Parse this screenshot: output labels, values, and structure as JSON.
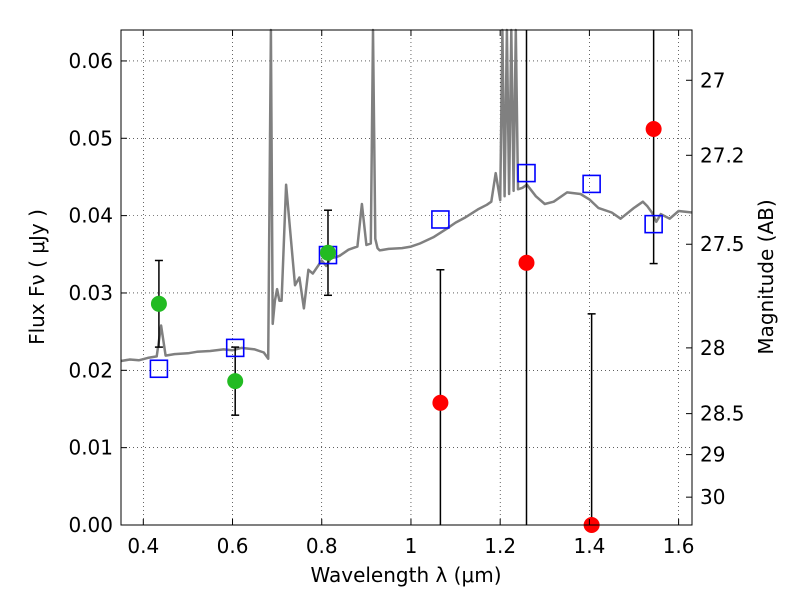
{
  "chart_data": {
    "type": "scatter",
    "xlabel": "Wavelength  λ (μm)",
    "ylabel": "Flux  Fν  ( μJy )",
    "y2label": "Magnitude (AB)",
    "xlim": [
      0.35,
      1.63
    ],
    "ylim": [
      0.0,
      0.064
    ],
    "grid": true,
    "x_ticks": [
      0.4,
      0.6,
      0.8,
      1.0,
      1.2,
      1.4,
      1.6
    ],
    "x_tick_labels": [
      "0.4",
      "0.6",
      "0.8",
      "1",
      "1.2",
      "1.4",
      "1.6"
    ],
    "y_ticks": [
      0.0,
      0.01,
      0.02,
      0.03,
      0.04,
      0.05,
      0.06
    ],
    "y_tick_labels": [
      "0.00",
      "0.01",
      "0.02",
      "0.03",
      "0.04",
      "0.05",
      "0.06"
    ],
    "y2_ticks": [
      {
        "label": "27",
        "flux": 0.0575
      },
      {
        "label": "27.2",
        "flux": 0.0478
      },
      {
        "label": "27.5",
        "flux": 0.0363
      },
      {
        "label": "28",
        "flux": 0.0229
      },
      {
        "label": "28.5",
        "flux": 0.0144
      },
      {
        "label": "29",
        "flux": 0.0091
      },
      {
        "label": "30",
        "flux": 0.0036
      }
    ],
    "series": [
      {
        "kind": "line",
        "color": "#808080",
        "x": [
          0.35,
          0.37,
          0.39,
          0.41,
          0.43,
          0.44,
          0.45,
          0.47,
          0.5,
          0.52,
          0.55,
          0.58,
          0.6,
          0.62,
          0.65,
          0.67,
          0.68,
          0.686,
          0.69,
          0.695,
          0.7,
          0.705,
          0.71,
          0.72,
          0.74,
          0.75,
          0.76,
          0.77,
          0.78,
          0.8,
          0.81,
          0.82,
          0.83,
          0.84,
          0.85,
          0.86,
          0.87,
          0.88,
          0.89,
          0.9,
          0.91,
          0.915,
          0.92,
          0.925,
          0.93,
          0.95,
          0.98,
          1.0,
          1.02,
          1.05,
          1.08,
          1.1,
          1.12,
          1.15,
          1.17,
          1.18,
          1.19,
          1.2,
          1.205,
          1.21,
          1.215,
          1.22,
          1.225,
          1.23,
          1.235,
          1.24,
          1.25,
          1.26,
          1.28,
          1.3,
          1.32,
          1.35,
          1.38,
          1.4,
          1.42,
          1.45,
          1.47,
          1.5,
          1.52,
          1.53,
          1.54,
          1.55,
          1.56,
          1.58,
          1.6,
          1.63
        ],
        "y": [
          0.0212,
          0.0214,
          0.0213,
          0.0216,
          0.0218,
          0.0258,
          0.0219,
          0.0221,
          0.0222,
          0.0224,
          0.0225,
          0.0227,
          0.0226,
          0.0229,
          0.0227,
          0.0223,
          0.0215,
          0.064,
          0.026,
          0.029,
          0.0305,
          0.029,
          0.029,
          0.044,
          0.031,
          0.032,
          0.028,
          0.033,
          0.0325,
          0.0342,
          0.0335,
          0.0345,
          0.0346,
          0.0348,
          0.0352,
          0.0356,
          0.0358,
          0.036,
          0.0415,
          0.0362,
          0.0364,
          0.064,
          0.037,
          0.0358,
          0.0355,
          0.0357,
          0.0358,
          0.036,
          0.0364,
          0.0372,
          0.0383,
          0.0391,
          0.0397,
          0.0408,
          0.0414,
          0.0418,
          0.0455,
          0.042,
          0.064,
          0.0425,
          0.064,
          0.0428,
          0.064,
          0.0432,
          0.064,
          0.0434,
          0.0436,
          0.044,
          0.0425,
          0.0415,
          0.0418,
          0.043,
          0.0428,
          0.0421,
          0.041,
          0.0404,
          0.0396,
          0.041,
          0.0418,
          0.0412,
          0.0404,
          0.0392,
          0.0402,
          0.0396,
          0.0406,
          0.0404
        ]
      },
      {
        "kind": "marker",
        "marker": "square",
        "color": "#0000ff",
        "x": [
          0.435,
          0.606,
          0.814,
          1.066,
          1.259,
          1.405,
          1.544
        ],
        "y": [
          0.0202,
          0.0229,
          0.0349,
          0.0395,
          0.0455,
          0.0441,
          0.0389
        ]
      },
      {
        "kind": "marker",
        "marker": "circle",
        "color": "#22bb22",
        "x": [
          0.435,
          0.606,
          0.814
        ],
        "y": [
          0.0286,
          0.0186,
          0.0352
        ],
        "err": [
          0.0056,
          0.0044,
          0.0055
        ]
      },
      {
        "kind": "marker",
        "marker": "circle",
        "color": "#ff0000",
        "x": [
          1.066,
          1.259,
          1.405,
          1.544
        ],
        "y": [
          0.0158,
          0.0339,
          0.0,
          0.0512
        ],
        "err": [
          0.0172,
          0.0339,
          0.0273,
          0.0174
        ],
        "err_top_clip": [
          false,
          true,
          false,
          true
        ]
      }
    ]
  }
}
